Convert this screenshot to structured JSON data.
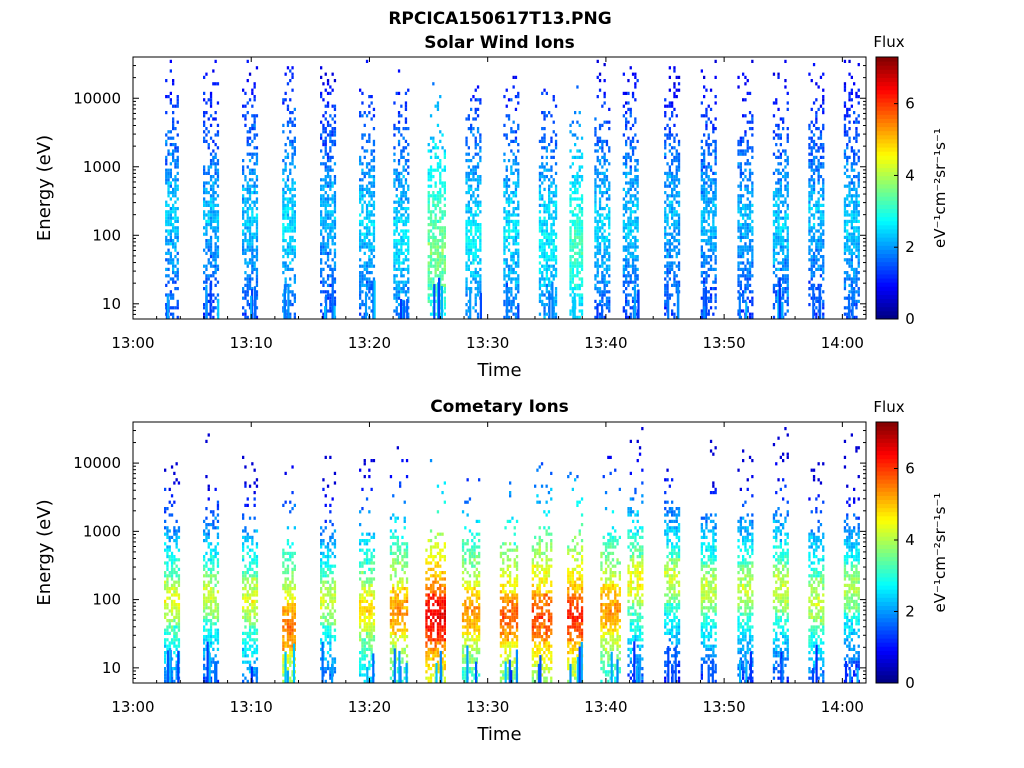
{
  "figure": {
    "title": "RPCICA150617T13.PNG"
  },
  "colorscale": [
    "#00007f",
    "#0000ff",
    "#007fff",
    "#00ffff",
    "#7fff7f",
    "#ffff00",
    "#ff7f00",
    "#ff0000",
    "#7f0000"
  ],
  "chart_data": [
    {
      "type": "heatmap",
      "title": "Solar Wind Ions",
      "xlabel": "Time",
      "ylabel": "Energy (eV)",
      "yscale": "log",
      "ylim": [
        6,
        40000
      ],
      "x_ticks": [
        "13:00",
        "13:10",
        "13:20",
        "13:30",
        "13:40",
        "13:50",
        "14:00"
      ],
      "x_tick_minutes": [
        0,
        10,
        20,
        30,
        40,
        50,
        60
      ],
      "xlim_minutes": [
        0,
        62
      ],
      "y_ticks": [
        "10",
        "100",
        "1000",
        "10000"
      ],
      "y_tick_values": [
        10,
        100,
        1000,
        10000
      ],
      "colorbar": {
        "label": "Flux",
        "units": "eV⁻¹cm⁻²sr⁻¹s⁻¹",
        "ticks": [
          "0",
          "2",
          "4",
          "6"
        ],
        "tick_values": [
          0,
          2,
          4,
          6
        ],
        "range": [
          0,
          7.3
        ]
      },
      "sweeps": [
        {
          "t": 3.3,
          "w": 1.2,
          "peak_e": 200,
          "flux": 2.4
        },
        {
          "t": 6.6,
          "w": 1.3,
          "peak_e": 200,
          "flux": 2.3
        },
        {
          "t": 9.9,
          "w": 1.3,
          "peak_e": 200,
          "flux": 2.4
        },
        {
          "t": 13.2,
          "w": 1.2,
          "peak_e": 150,
          "flux": 2.6
        },
        {
          "t": 16.5,
          "w": 1.3,
          "peak_e": 200,
          "flux": 2.3
        },
        {
          "t": 19.8,
          "w": 1.3,
          "peak_e": 150,
          "flux": 2.5
        },
        {
          "t": 22.7,
          "w": 1.4,
          "peak_e": 100,
          "flux": 2.6
        },
        {
          "t": 25.7,
          "w": 1.5,
          "peak_e": 60,
          "flux": 3.6
        },
        {
          "t": 28.8,
          "w": 1.4,
          "peak_e": 100,
          "flux": 2.7
        },
        {
          "t": 32.0,
          "w": 1.4,
          "peak_e": 120,
          "flux": 2.6
        },
        {
          "t": 35.1,
          "w": 1.5,
          "peak_e": 90,
          "flux": 2.7
        },
        {
          "t": 37.5,
          "w": 1.2,
          "peak_e": 80,
          "flux": 3.2
        },
        {
          "t": 39.7,
          "w": 1.3,
          "peak_e": 150,
          "flux": 2.5
        },
        {
          "t": 42.1,
          "w": 1.3,
          "peak_e": 150,
          "flux": 2.4
        },
        {
          "t": 45.6,
          "w": 1.3,
          "peak_e": 200,
          "flux": 2.3
        },
        {
          "t": 48.7,
          "w": 1.3,
          "peak_e": 200,
          "flux": 2.3
        },
        {
          "t": 51.8,
          "w": 1.3,
          "peak_e": 200,
          "flux": 2.3
        },
        {
          "t": 54.8,
          "w": 1.3,
          "peak_e": 150,
          "flux": 2.4
        },
        {
          "t": 57.8,
          "w": 1.3,
          "peak_e": 200,
          "flux": 2.3
        },
        {
          "t": 60.8,
          "w": 1.3,
          "peak_e": 150,
          "flux": 2.4
        }
      ]
    },
    {
      "type": "heatmap",
      "title": "Cometary Ions",
      "xlabel": "Time",
      "ylabel": "Energy (eV)",
      "yscale": "log",
      "ylim": [
        6,
        40000
      ],
      "x_ticks": [
        "13:00",
        "13:10",
        "13:20",
        "13:30",
        "13:40",
        "13:50",
        "14:00"
      ],
      "x_tick_minutes": [
        0,
        10,
        20,
        30,
        40,
        50,
        60
      ],
      "xlim_minutes": [
        0,
        62
      ],
      "y_ticks": [
        "10",
        "100",
        "1000",
        "10000"
      ],
      "y_tick_values": [
        10,
        100,
        1000,
        10000
      ],
      "colorbar": {
        "label": "Flux",
        "units": "eV⁻¹cm⁻²sr⁻¹s⁻¹",
        "ticks": [
          "0",
          "2",
          "4",
          "6"
        ],
        "tick_values": [
          0,
          2,
          4,
          6
        ],
        "range": [
          0,
          7.3
        ]
      },
      "sweeps": [
        {
          "t": 3.3,
          "w": 1.4,
          "peak_e": 100,
          "flux": 4.0
        },
        {
          "t": 6.6,
          "w": 1.4,
          "peak_e": 120,
          "flux": 3.8
        },
        {
          "t": 9.9,
          "w": 1.4,
          "peak_e": 100,
          "flux": 4.0
        },
        {
          "t": 13.2,
          "w": 1.2,
          "peak_e": 40,
          "flux": 5.2
        },
        {
          "t": 16.5,
          "w": 1.3,
          "peak_e": 100,
          "flux": 3.8
        },
        {
          "t": 19.8,
          "w": 1.4,
          "peak_e": 80,
          "flux": 4.4
        },
        {
          "t": 22.5,
          "w": 1.6,
          "peak_e": 70,
          "flux": 5.0
        },
        {
          "t": 25.6,
          "w": 1.8,
          "peak_e": 60,
          "flux": 6.2
        },
        {
          "t": 28.6,
          "w": 1.6,
          "peak_e": 70,
          "flux": 5.0
        },
        {
          "t": 31.8,
          "w": 1.6,
          "peak_e": 60,
          "flux": 5.4
        },
        {
          "t": 34.6,
          "w": 1.7,
          "peak_e": 60,
          "flux": 5.6
        },
        {
          "t": 37.4,
          "w": 1.3,
          "peak_e": 60,
          "flux": 5.8
        },
        {
          "t": 40.4,
          "w": 1.7,
          "peak_e": 80,
          "flux": 5.0
        },
        {
          "t": 42.5,
          "w": 1.4,
          "peak_e": 200,
          "flux": 4.2
        },
        {
          "t": 45.6,
          "w": 1.4,
          "peak_e": 200,
          "flux": 3.8
        },
        {
          "t": 48.7,
          "w": 1.4,
          "peak_e": 150,
          "flux": 3.8
        },
        {
          "t": 51.8,
          "w": 1.4,
          "peak_e": 150,
          "flux": 3.8
        },
        {
          "t": 54.8,
          "w": 1.4,
          "peak_e": 150,
          "flux": 3.9
        },
        {
          "t": 57.8,
          "w": 1.4,
          "peak_e": 100,
          "flux": 3.9
        },
        {
          "t": 60.8,
          "w": 1.4,
          "peak_e": 150,
          "flux": 3.6
        }
      ]
    }
  ]
}
